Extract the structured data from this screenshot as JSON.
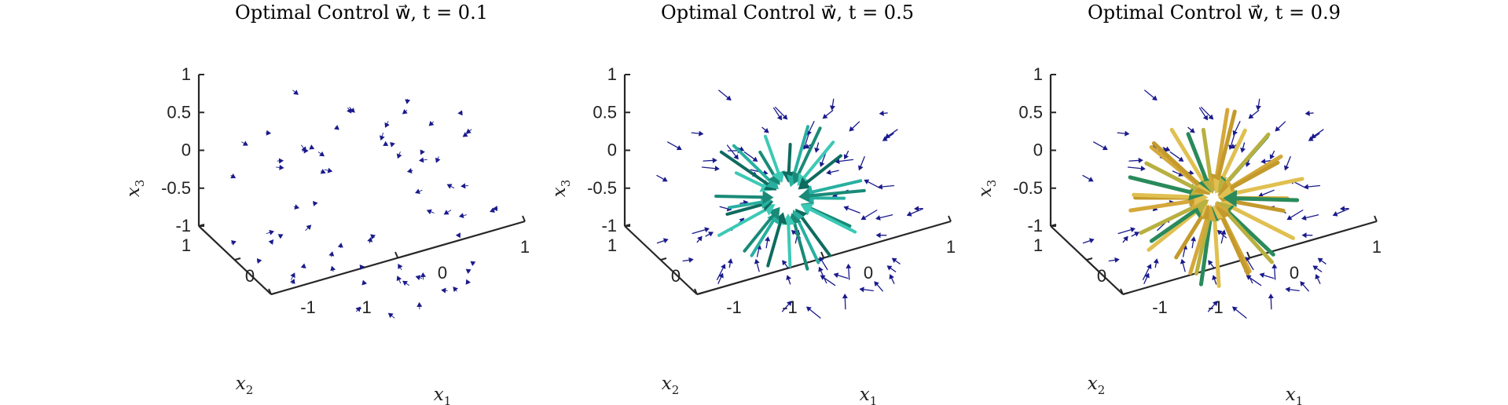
{
  "chart_data": [
    {
      "type": "quiver3d",
      "title": "Optimal Control w⃗, t = 0.1",
      "t": 0.1,
      "xlabel": "x1",
      "ylabel": "x2",
      "zlabel": "x3",
      "x_ticks": [
        "-1",
        "0",
        "1"
      ],
      "y_ticks": [
        "-1",
        "0",
        "1"
      ],
      "z_ticks": [
        "-1",
        "-0.5",
        "0",
        "0.5",
        "1"
      ],
      "xlim": [
        -1,
        1
      ],
      "ylim": [
        -1,
        1
      ],
      "zlim": [
        -1,
        1
      ],
      "field": "radial inward, sparse",
      "outer_arrow_color": "#1a1a8c",
      "inner_arrow_colors": [],
      "inner_count": 0
    },
    {
      "type": "quiver3d",
      "title": "Optimal Control w⃗, t = 0.5",
      "t": 0.5,
      "xlabel": "x1",
      "ylabel": "x2",
      "zlabel": "x3",
      "x_ticks": [
        "-1",
        "0",
        "1"
      ],
      "y_ticks": [
        "-1",
        "0",
        "1"
      ],
      "z_ticks": [
        "-1",
        "-0.5",
        "0",
        "0.5",
        "1"
      ],
      "xlim": [
        -1,
        1
      ],
      "ylim": [
        -1,
        1
      ],
      "zlim": [
        -1,
        1
      ],
      "field": "radial inward, thick arrows near origin",
      "outer_arrow_color": "#1a1a8c",
      "inner_arrow_colors": [
        "#27b0a0",
        "#1a8a78",
        "#3cc9b5",
        "#0f6b5f"
      ],
      "inner_count": 26
    },
    {
      "type": "quiver3d",
      "title": "Optimal Control w⃗, t = 0.9",
      "t": 0.9,
      "xlabel": "x1",
      "ylabel": "x2",
      "zlabel": "x3",
      "x_ticks": [
        "-1",
        "0",
        "1"
      ],
      "y_ticks": [
        "-1",
        "0",
        "1"
      ],
      "z_ticks": [
        "-1",
        "-0.5",
        "0",
        "0.5",
        "1"
      ],
      "xlim": [
        -1,
        1
      ],
      "ylim": [
        -1,
        1
      ],
      "zlim": [
        -1,
        1
      ],
      "field": "radial inward, long thick arrows near origin",
      "outer_arrow_color": "#1a1a8c",
      "inner_arrow_colors": [
        "#d4a83a",
        "#c49a2c",
        "#e0c050",
        "#2a8a5a",
        "#b8b040"
      ],
      "inner_count": 34
    }
  ]
}
